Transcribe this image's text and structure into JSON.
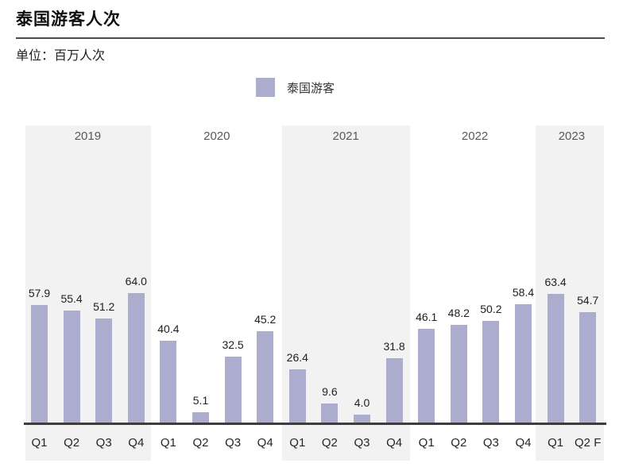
{
  "page": {
    "title": "泰国游客人次",
    "unit_label": "单位：百万人次"
  },
  "legend": {
    "series_label": "泰国游客"
  },
  "colors": {
    "bar": "#abacce",
    "year_band": "#f2f2f2",
    "axis": "#3d3d3d",
    "year_label": "#595959",
    "value_label": "#1f1f1f"
  },
  "chart_data": {
    "type": "bar",
    "title": "泰国游客人次",
    "unit": "百万人次",
    "series_name": "泰国游客",
    "legend_position": "top-center",
    "grid": false,
    "value_labels": true,
    "ylim": [
      0,
      70
    ],
    "categories": [
      "Q1",
      "Q2",
      "Q3",
      "Q4",
      "Q1",
      "Q2",
      "Q3",
      "Q4",
      "Q1",
      "Q2",
      "Q3",
      "Q4",
      "Q1",
      "Q2",
      "Q3",
      "Q4",
      "Q1",
      "Q2 F"
    ],
    "values": [
      57.9,
      55.4,
      51.2,
      64.0,
      40.4,
      5.1,
      32.5,
      45.2,
      26.4,
      9.6,
      4.0,
      31.8,
      46.1,
      48.2,
      50.2,
      58.4,
      63.4,
      54.7
    ],
    "year_groups": [
      {
        "year": "2019",
        "quarters": [
          "Q1",
          "Q2",
          "Q3",
          "Q4"
        ],
        "values": [
          57.9,
          55.4,
          51.2,
          64.0
        ],
        "shaded": true
      },
      {
        "year": "2020",
        "quarters": [
          "Q1",
          "Q2",
          "Q3",
          "Q4"
        ],
        "values": [
          40.4,
          5.1,
          32.5,
          45.2
        ],
        "shaded": false
      },
      {
        "year": "2021",
        "quarters": [
          "Q1",
          "Q2",
          "Q3",
          "Q4"
        ],
        "values": [
          26.4,
          9.6,
          4.0,
          31.8
        ],
        "shaded": true
      },
      {
        "year": "2022",
        "quarters": [
          "Q1",
          "Q2",
          "Q3",
          "Q4"
        ],
        "values": [
          46.1,
          48.2,
          50.2,
          58.4
        ],
        "shaded": false
      },
      {
        "year": "2023",
        "quarters": [
          "Q1",
          "Q2 F"
        ],
        "values": [
          63.4,
          54.7
        ],
        "shaded": true
      }
    ]
  }
}
